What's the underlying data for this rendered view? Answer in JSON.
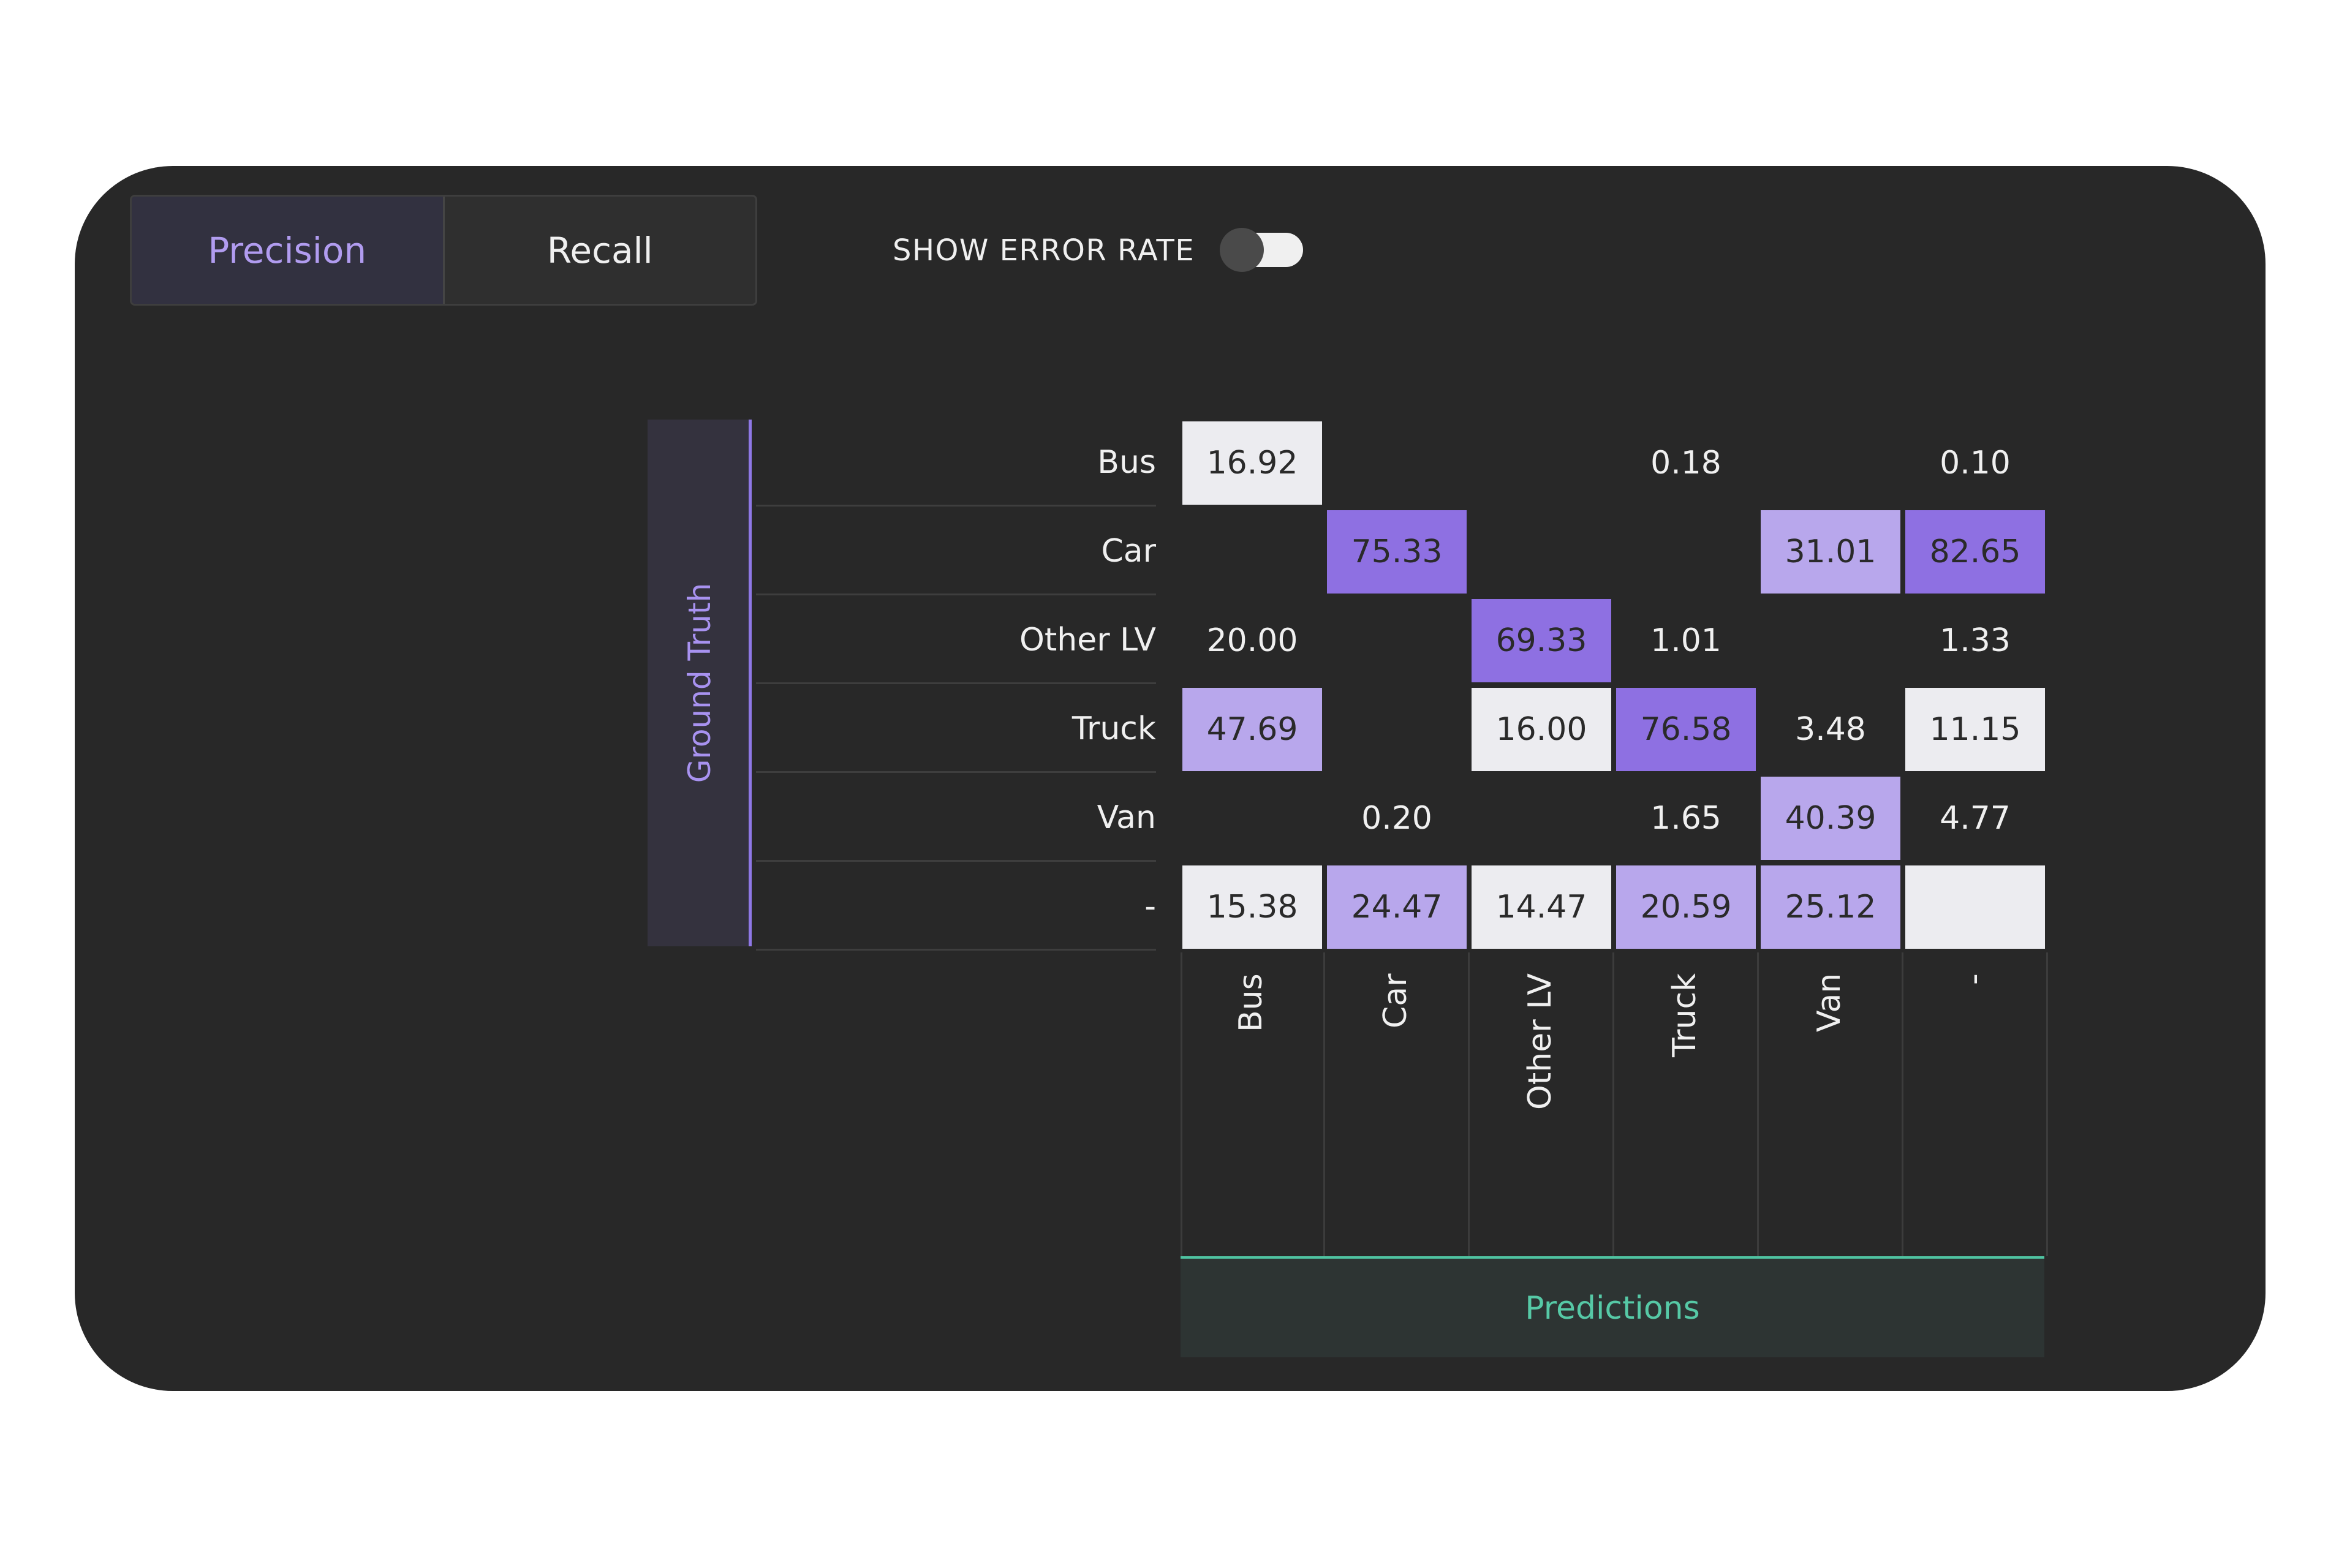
{
  "toolbar": {
    "precision_label": "Precision",
    "recall_label": "Recall",
    "active_tab": "Precision",
    "error_rate_label": "SHOW ERROR RATE",
    "error_rate_on": false
  },
  "matrix": {
    "y_axis_title": "Ground Truth",
    "x_axis_title": "Predictions",
    "rows": [
      "Bus",
      "Car",
      "Other LV",
      "Truck",
      "Van",
      "-"
    ],
    "cols": [
      "Bus",
      "Car",
      "Other LV",
      "Truck",
      "Van",
      "-"
    ],
    "cells": [
      [
        "16.92",
        "",
        "",
        "0.18",
        "",
        "0.10"
      ],
      [
        "",
        "75.33",
        "",
        "",
        "31.01",
        "82.65"
      ],
      [
        "20.00",
        "",
        "69.33",
        "1.01",
        "",
        "1.33"
      ],
      [
        "47.69",
        "",
        "16.00",
        "76.58",
        "3.48",
        "11.15"
      ],
      [
        "",
        "0.20",
        "",
        "1.65",
        "40.39",
        "4.77"
      ],
      [
        "15.38",
        "24.47",
        "14.47",
        "20.59",
        "25.12",
        ""
      ]
    ],
    "shading": [
      [
        "light",
        "none",
        "none",
        "none",
        "none",
        "none"
      ],
      [
        "none",
        "strong",
        "none",
        "none",
        "mid",
        "strong"
      ],
      [
        "none",
        "none",
        "strong",
        "none",
        "none",
        "none"
      ],
      [
        "mid",
        "none",
        "light",
        "strong",
        "none",
        "light"
      ],
      [
        "none",
        "none",
        "none",
        "none",
        "mid",
        "none"
      ],
      [
        "light",
        "mid",
        "light",
        "mid",
        "mid",
        "light"
      ]
    ],
    "colors": {
      "light": "#ececf0",
      "mid": "#b8a7ec",
      "strong": "#8e70e2",
      "ground_truth_accent": "#a892f0",
      "predictions_accent": "#56c9a6"
    }
  }
}
